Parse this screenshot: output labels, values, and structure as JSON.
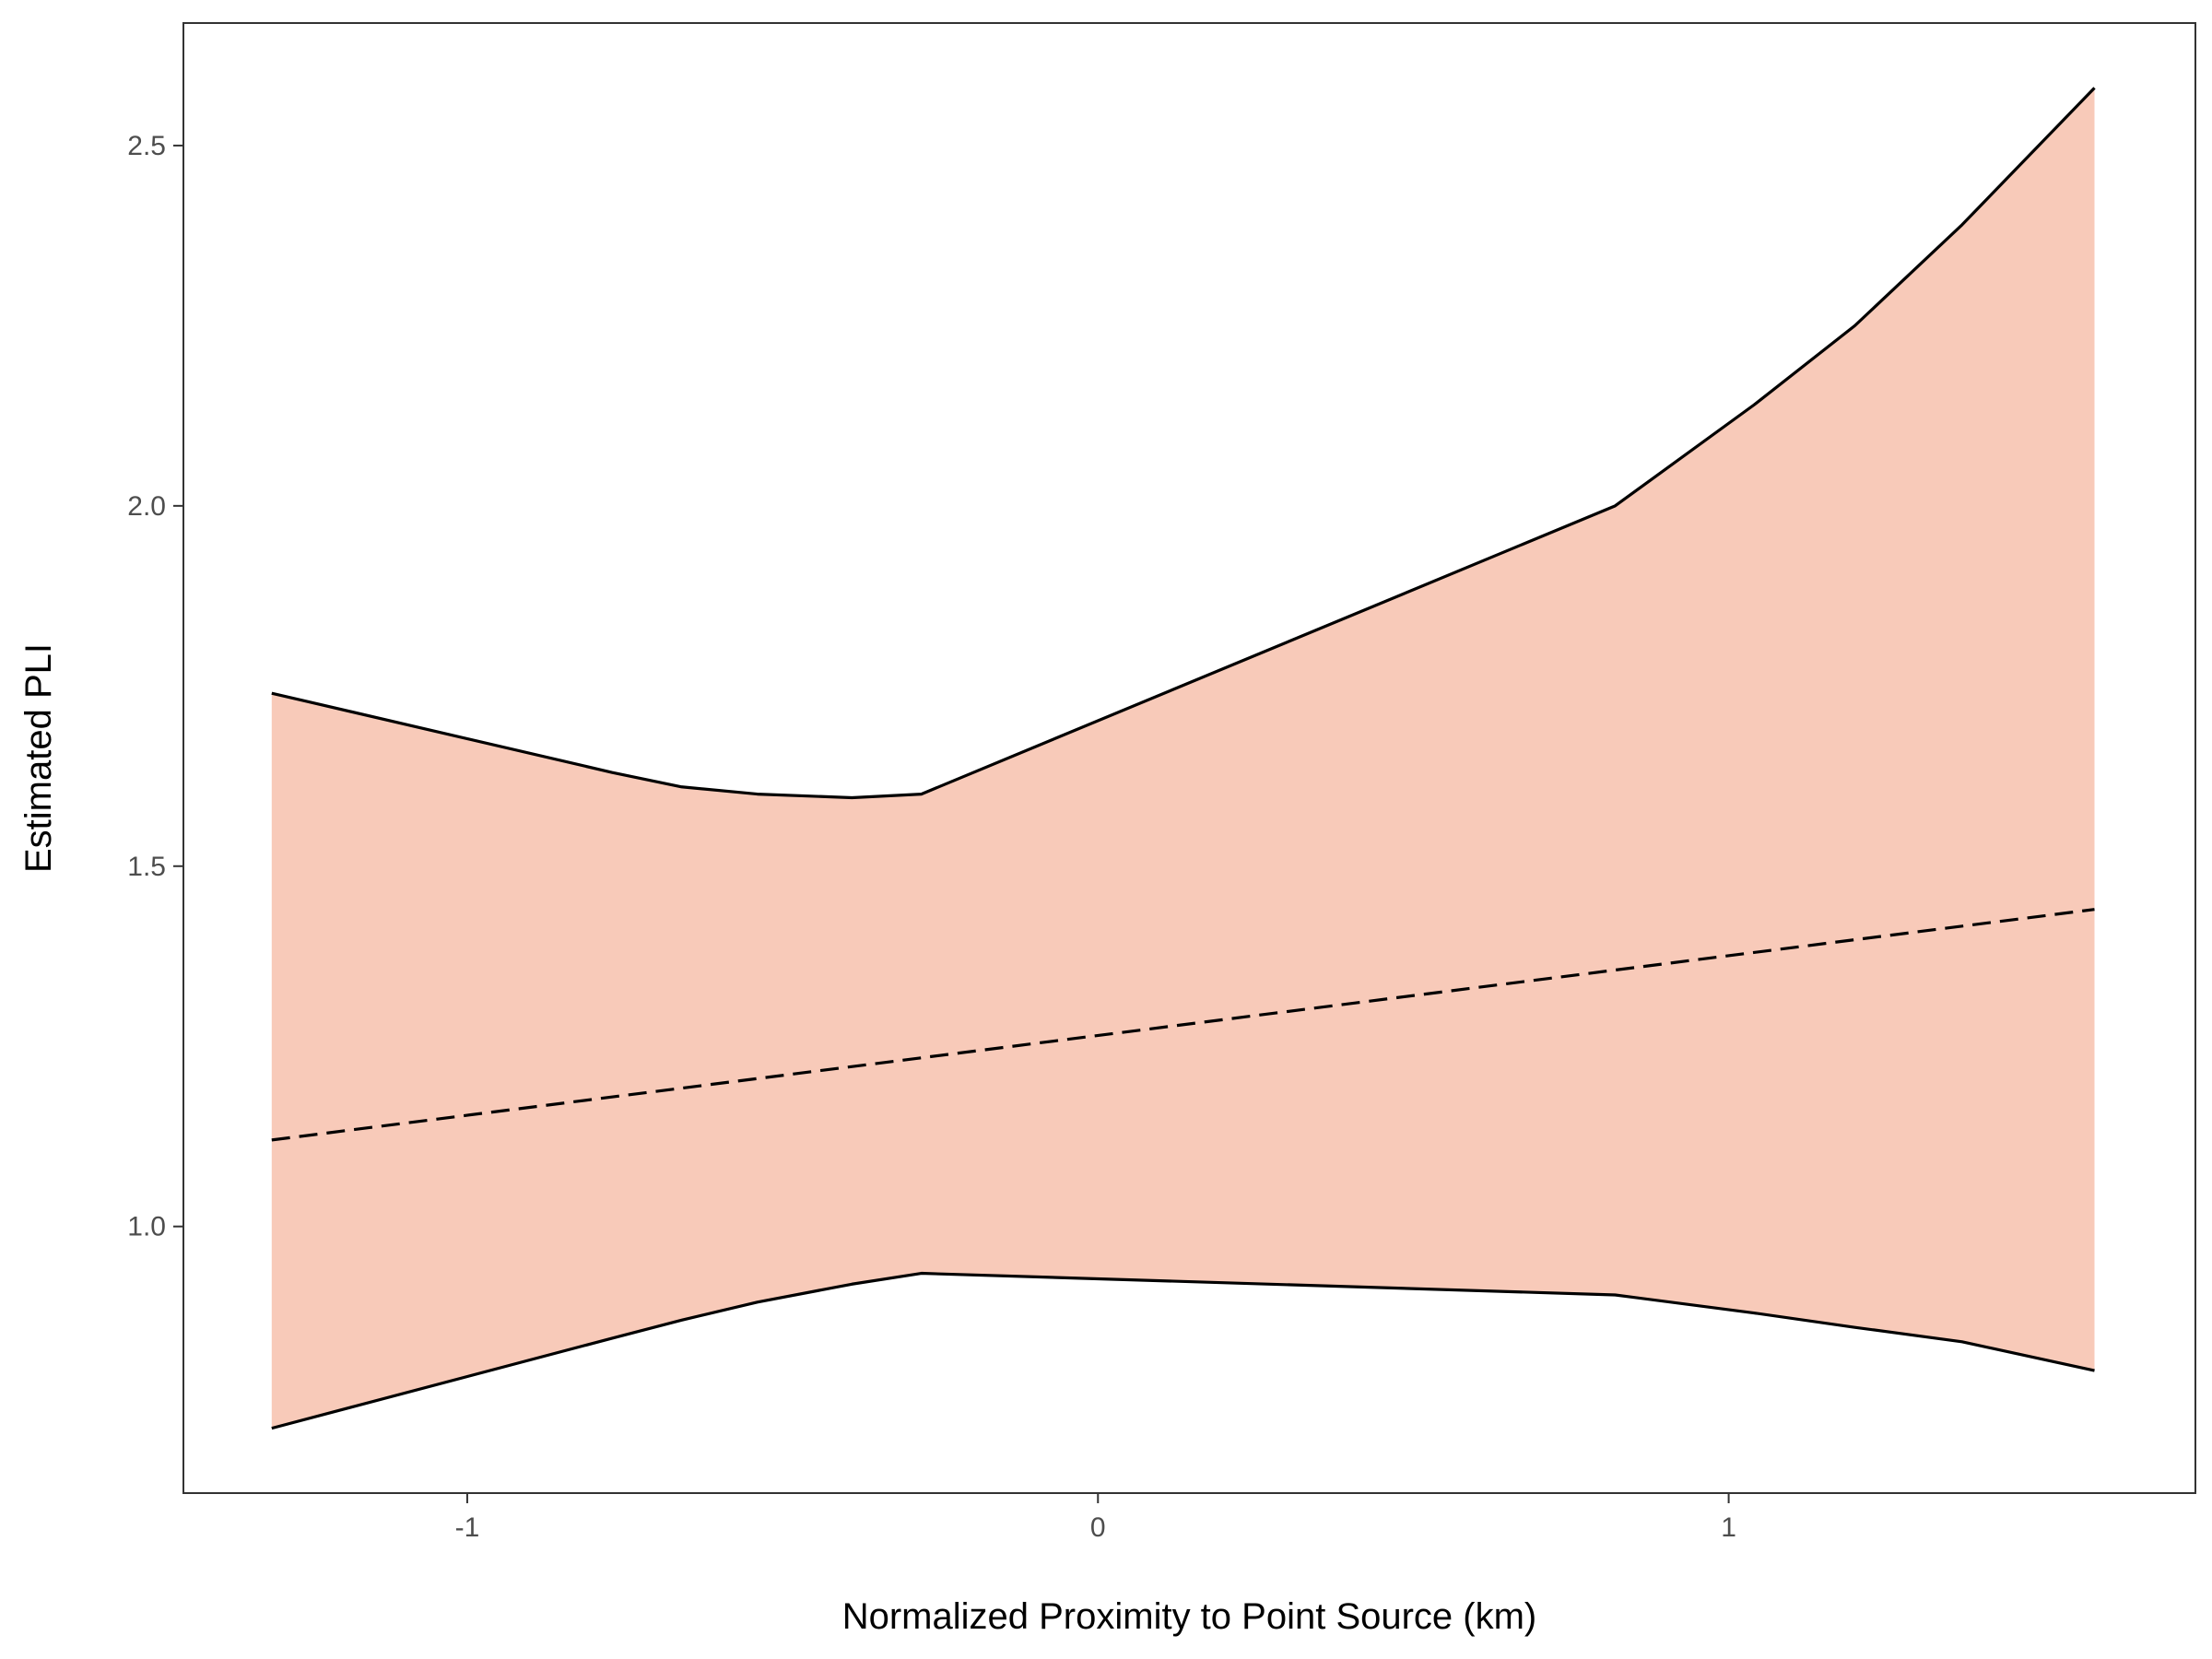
{
  "chart_data": {
    "type": "area",
    "title": "",
    "xlabel": "Normalized Proximity to Point Source (km)",
    "ylabel": "Estimated PLI",
    "xlim": [
      -1.45,
      1.74
    ],
    "ylim": [
      0.63,
      2.67
    ],
    "x_ticks": [
      {
        "value": -1,
        "label": "-1"
      },
      {
        "value": 0,
        "label": "0"
      },
      {
        "value": 1,
        "label": "1"
      }
    ],
    "y_ticks": [
      {
        "value": 1.0,
        "label": "1.0"
      },
      {
        "value": 1.5,
        "label": "1.5"
      },
      {
        "value": 2.0,
        "label": "2.0"
      },
      {
        "value": 2.5,
        "label": "2.5"
      }
    ],
    "grid": false,
    "legend": "none",
    "colors": {
      "band_fill": "#F8CAB9",
      "line": "#000000",
      "panel_border": "#333333",
      "tick_label": "#4d4d4d"
    },
    "series": [
      {
        "role": "upper-bound",
        "line_style": "solid",
        "x": [
          -1.31,
          -0.77,
          -0.66,
          -0.54,
          -0.39,
          -0.28,
          0.82,
          1.04,
          1.2,
          1.37,
          1.58
        ],
        "y": [
          1.74,
          1.63,
          1.61,
          1.6,
          1.595,
          1.6,
          2.0,
          2.14,
          2.25,
          2.39,
          2.58
        ]
      },
      {
        "role": "estimate",
        "line_style": "dashed",
        "x": [
          -1.31,
          1.58
        ],
        "y": [
          1.12,
          1.44
        ]
      },
      {
        "role": "lower-bound",
        "line_style": "solid",
        "x": [
          -1.31,
          -0.77,
          -0.66,
          -0.54,
          -0.39,
          -0.28,
          0.82,
          1.04,
          1.2,
          1.37,
          1.58
        ],
        "y": [
          0.72,
          0.845,
          0.87,
          0.895,
          0.92,
          0.935,
          0.905,
          0.88,
          0.86,
          0.84,
          0.8
        ]
      }
    ]
  }
}
